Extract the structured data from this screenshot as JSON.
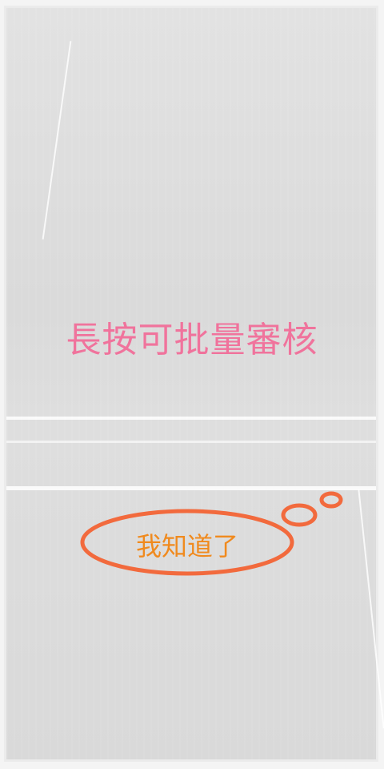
{
  "hint": {
    "text": "長按可批量審核"
  },
  "dismiss": {
    "label": "我知道了"
  },
  "colors": {
    "hint_text": "#f0739c",
    "button_text": "#f08a1e",
    "bubble_stroke": "#f26a3d"
  }
}
